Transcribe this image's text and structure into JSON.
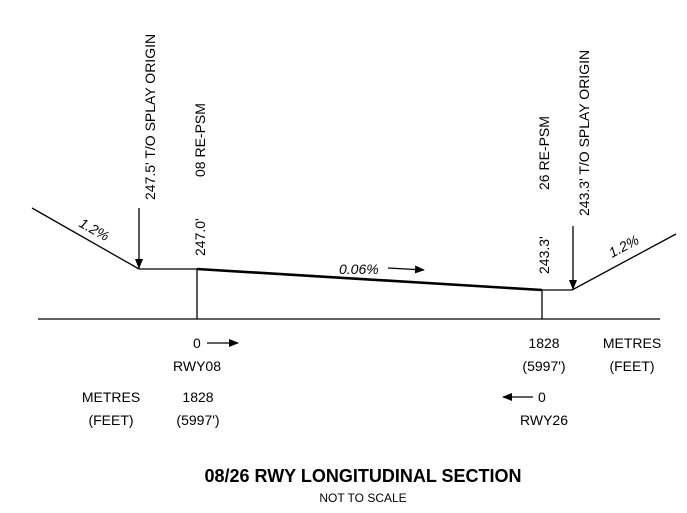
{
  "left_end": {
    "origin_text": "247.5'  T/O SPLAY ORIGIN",
    "gradient": "1.2%"
  },
  "rwy08_end": {
    "psm_label": "08 RE-PSM",
    "elevation": "247.0'",
    "chainage_metres": "0",
    "rwy_label": "RWY08",
    "chainage_metres_far": "1828",
    "chainage_feet_far": "(5997')"
  },
  "runway_gradient": "0.06%",
  "rwy26_end": {
    "psm_label": "26 RE-PSM",
    "elevation": "243.3'",
    "chainage_metres": "1828",
    "chainage_feet": "(5997')",
    "chainage_metres_far": "0",
    "rwy_label": "RWY26"
  },
  "right_end": {
    "origin_text": "243.3'  T/O SPLAY ORIGIN",
    "gradient": "1.2%"
  },
  "units_left": {
    "metres": "METRES",
    "feet": "(FEET)"
  },
  "units_right": {
    "metres": "METRES",
    "feet": "(FEET)"
  },
  "title": "08/26 RWY LONGITUDINAL SECTION",
  "subtitle": "NOT TO SCALE"
}
